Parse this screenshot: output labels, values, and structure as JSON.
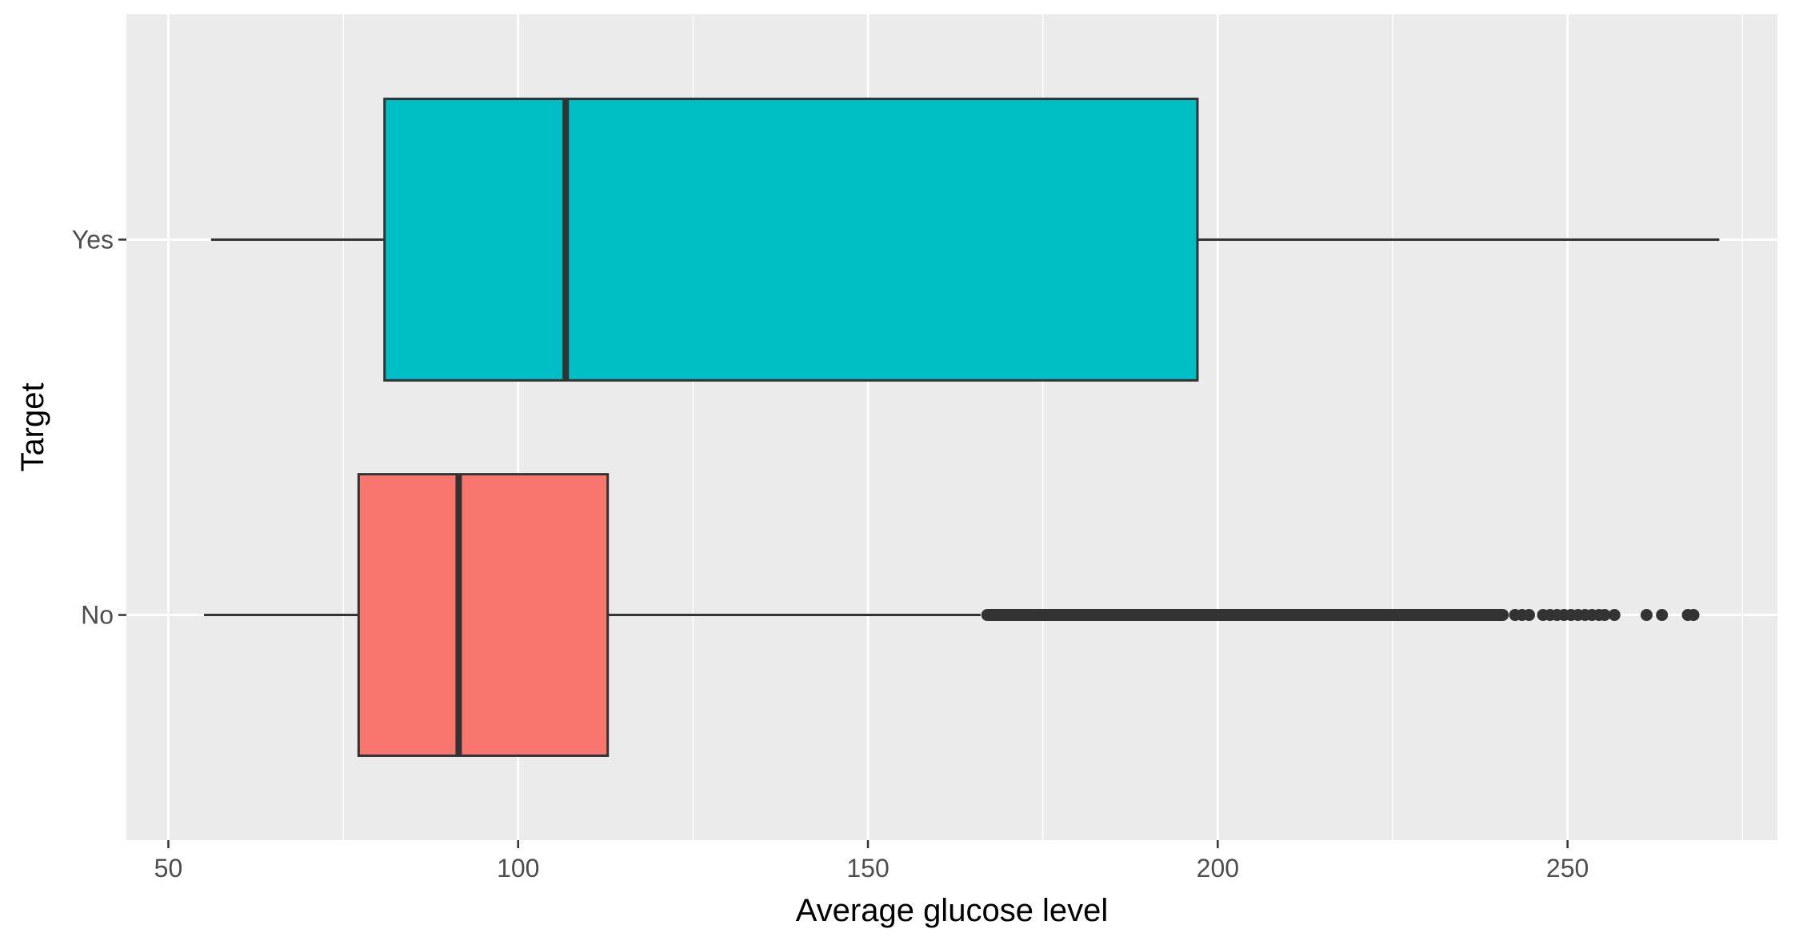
{
  "chart_data": {
    "type": "boxplot",
    "orientation": "horizontal",
    "xlabel": "Average glucose level",
    "ylabel": "Target",
    "xlim": [
      44,
      280
    ],
    "x_ticks": [
      50,
      100,
      150,
      200,
      250
    ],
    "x_minor_ticks": [
      75,
      125,
      175,
      225,
      275
    ],
    "grid": true,
    "legend": "none",
    "categories": [
      "No",
      "Yes"
    ],
    "boxes": [
      {
        "category": "No",
        "whisker_low": 55.1,
        "q1": 77.2,
        "median": 91.5,
        "q3": 112.8,
        "whisker_high": 166.1,
        "fill": "#F8766D",
        "outliers_dense_range": [
          166.2,
          241.6
        ],
        "outliers": [
          242.5,
          243.5,
          244.5,
          246.5,
          247.5,
          248.5,
          249.5,
          250.5,
          251.5,
          252.5,
          253.5,
          254.5,
          255.3,
          256.7,
          261.3,
          263.5,
          267.2,
          268.0
        ]
      },
      {
        "category": "Yes",
        "whisker_low": 56.1,
        "q1": 80.9,
        "median": 106.8,
        "q3": 197.1,
        "whisker_high": 271.7,
        "fill": "#00BFC4",
        "outliers": []
      }
    ],
    "colors": {
      "panel_background": "#EBEBEB",
      "grid": "#FFFFFF",
      "outline": "#333333"
    }
  }
}
